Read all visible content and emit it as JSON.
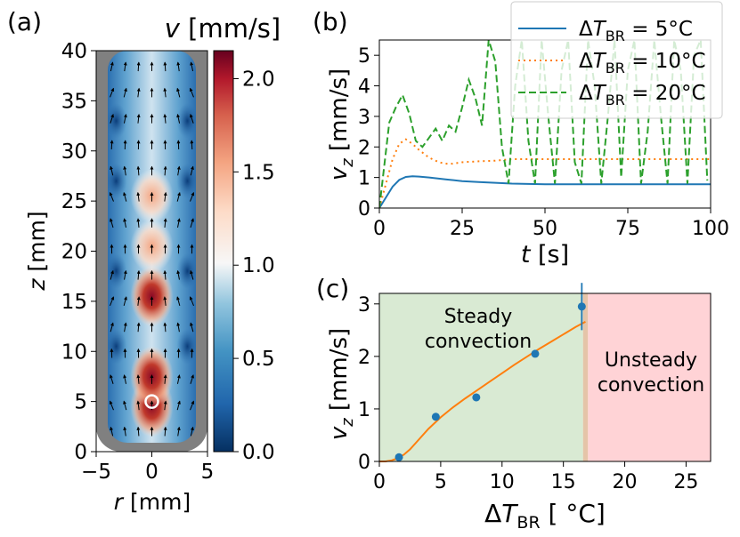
{
  "panels": {
    "a": "(a)",
    "b": "(b)",
    "c": "(c)"
  },
  "colors": {
    "blue": "#1f77b4",
    "orange": "#ff7f0e",
    "green": "#2ca02c",
    "steady_bg": "#d9ead3",
    "unsteady_bg": "#ffd3d6",
    "wall": "#808080"
  },
  "chart_data": [
    {
      "type": "heatmap",
      "panel": "(a)",
      "title": "v [mm/s]",
      "xlabel": "r [mm]",
      "ylabel": "z [mm]",
      "xlim": [
        -5,
        5
      ],
      "ylim": [
        0,
        40
      ],
      "xticks": [
        -5,
        0,
        5
      ],
      "xtick_labels": [
        "−5",
        "0",
        "5"
      ],
      "yticks": [
        0,
        5,
        10,
        15,
        20,
        25,
        30,
        35,
        40
      ],
      "colorbar": {
        "label": "v [mm/s]",
        "range": [
          0,
          2.15
        ],
        "ticks": [
          0.0,
          0.5,
          1.0,
          1.5,
          2.0
        ],
        "tick_labels": [
          "0.0",
          "0.5",
          "1.0",
          "1.5",
          "2.0"
        ]
      },
      "speed_hotspots": [
        {
          "z": 4.5,
          "v": 2.1
        },
        {
          "z": 7.5,
          "v": 2.1
        },
        {
          "z": 15.5,
          "v": 2.15
        },
        {
          "z": 20.5,
          "v": 1.4
        },
        {
          "z": 25.5,
          "v": 1.0
        }
      ],
      "marker": {
        "r": 0,
        "z": 5
      }
    },
    {
      "type": "line",
      "panel": "(b)",
      "xlabel": "t [s]",
      "ylabel": "v_z [mm/s]",
      "xlim": [
        0,
        100
      ],
      "ylim": [
        0,
        5.5
      ],
      "xticks": [
        0,
        25,
        50,
        75,
        100
      ],
      "yticks": [
        0,
        1,
        2,
        3,
        4,
        5
      ],
      "legend_position": "top-right",
      "series": [
        {
          "name": "ΔT_BR = 5°C",
          "legend_prefix": "ΔT",
          "legend_sub": "BR",
          "legend_suffix": " = 5°C",
          "style": "solid",
          "x": [
            0,
            2,
            4,
            6,
            8,
            10,
            12,
            15,
            20,
            25,
            30,
            40,
            50,
            60,
            70,
            80,
            90,
            100
          ],
          "y": [
            0,
            0.35,
            0.7,
            0.92,
            1.02,
            1.04,
            1.03,
            1.0,
            0.94,
            0.88,
            0.85,
            0.8,
            0.78,
            0.78,
            0.78,
            0.78,
            0.78,
            0.78
          ]
        },
        {
          "name": "ΔT_BR = 10°C",
          "legend_prefix": "ΔT",
          "legend_sub": "BR",
          "legend_suffix": " = 10°C",
          "style": "dotted",
          "x": [
            0,
            2,
            4,
            6,
            8,
            10,
            12,
            15,
            18,
            20,
            22,
            25,
            30,
            35,
            40,
            50,
            60,
            70,
            80,
            90,
            100
          ],
          "y": [
            0,
            0.8,
            1.6,
            2.1,
            2.25,
            2.1,
            1.9,
            1.65,
            1.5,
            1.45,
            1.45,
            1.5,
            1.53,
            1.55,
            1.6,
            1.6,
            1.6,
            1.6,
            1.6,
            1.6,
            1.6
          ]
        },
        {
          "name": "ΔT_BR = 20°C",
          "legend_prefix": "ΔT",
          "legend_sub": "BR",
          "legend_suffix": " = 20°C",
          "style": "dashed",
          "x": [
            0,
            3,
            5,
            7,
            9,
            11,
            13,
            15,
            17,
            19,
            21,
            23,
            25,
            27,
            29,
            31,
            33,
            35,
            37,
            39,
            41,
            43,
            45,
            47,
            49,
            51,
            53,
            55,
            57,
            59,
            61,
            63,
            65,
            67,
            69,
            71,
            73,
            75,
            77,
            79,
            81,
            83,
            85,
            87,
            89,
            91,
            93,
            95,
            97,
            99
          ],
          "y": [
            0,
            2.8,
            3.3,
            3.7,
            3.1,
            2.2,
            2.0,
            2.3,
            2.6,
            2.2,
            2.7,
            2.5,
            3.3,
            4.2,
            3.6,
            2.7,
            5.5,
            4.8,
            2.0,
            0.8,
            4.0,
            5.5,
            2.2,
            0.8,
            5.5,
            3.0,
            0.8,
            4.5,
            5.5,
            1.5,
            0.8,
            5.5,
            4.0,
            0.8,
            3.0,
            5.5,
            1.0,
            4.5,
            5.5,
            0.8,
            2.5,
            5.5,
            3.0,
            0.8,
            5.5,
            4.5,
            0.8,
            5.0,
            5.5,
            0.9
          ]
        }
      ]
    },
    {
      "type": "scatter",
      "panel": "(c)",
      "xlabel": "ΔT_BR [°C]",
      "ylabel": "v_z [mm/s]",
      "xlim": [
        0,
        27
      ],
      "ylim": [
        0,
        3.2
      ],
      "xticks": [
        0,
        5,
        10,
        15,
        20,
        25
      ],
      "yticks": [
        0,
        1,
        2,
        3
      ],
      "regions": [
        {
          "label_lines": [
            "Steady",
            "convection"
          ],
          "x_from": 0,
          "x_to": 16.6
        },
        {
          "label_lines": [
            "Unsteady",
            "convection"
          ],
          "x_from": 17.0,
          "x_to": 27
        }
      ],
      "boundary_band": [
        16.6,
        17.0
      ],
      "points": [
        {
          "x": 1.6,
          "y": 0.08,
          "err": 0.05
        },
        {
          "x": 4.6,
          "y": 0.85,
          "err": 0.05
        },
        {
          "x": 7.9,
          "y": 1.22,
          "err": 0.07
        },
        {
          "x": 12.7,
          "y": 2.05,
          "err": 0.04
        },
        {
          "x": 16.5,
          "y": 2.95,
          "err": 0.45
        }
      ],
      "fit_curve": {
        "x": [
          0,
          0.5,
          1.0,
          1.5,
          2.0,
          2.5,
          3.0,
          4.0,
          5.0,
          6.0,
          7.0,
          8.0,
          9.0,
          10.0,
          11.0,
          12.0,
          13.0,
          14.0,
          15.0,
          16.0,
          16.8
        ],
        "y": [
          0,
          0.0,
          0.02,
          0.06,
          0.13,
          0.23,
          0.36,
          0.62,
          0.84,
          1.03,
          1.2,
          1.36,
          1.52,
          1.68,
          1.84,
          1.99,
          2.14,
          2.28,
          2.42,
          2.56,
          2.66
        ]
      }
    }
  ]
}
